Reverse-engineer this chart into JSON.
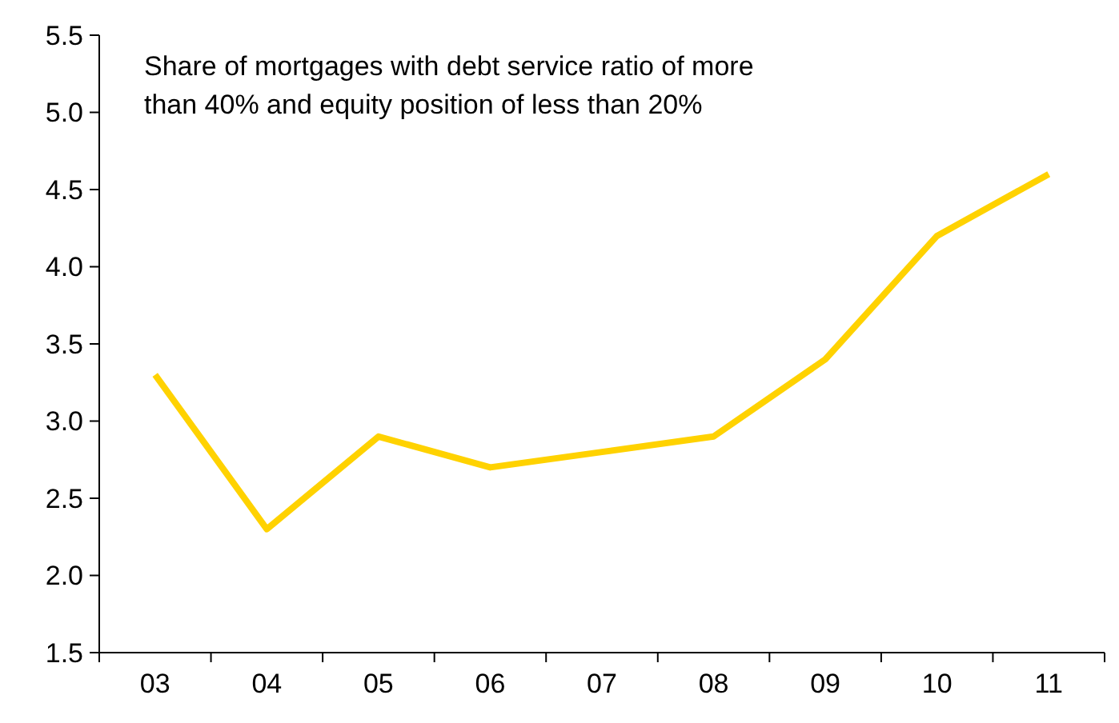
{
  "chart_data": {
    "type": "line",
    "title": "Share of mortgages with debt service ratio of more than 40% and equity position of less than 20%",
    "categories": [
      "03",
      "04",
      "05",
      "06",
      "07",
      "08",
      "09",
      "10",
      "11"
    ],
    "series": [
      {
        "color": "#ffd200",
        "values": [
          3.3,
          2.3,
          2.9,
          2.7,
          2.8,
          2.9,
          3.4,
          4.2,
          4.6
        ]
      }
    ],
    "ylim": [
      1.5,
      5.5
    ],
    "yticks": [
      {
        "value": 1.5,
        "label": "1.5"
      },
      {
        "value": 2,
        "label": "2.0"
      },
      {
        "value": 2.5,
        "label": "2.5"
      },
      {
        "value": 3,
        "label": "3.0"
      },
      {
        "value": 3.5,
        "label": "3.5"
      },
      {
        "value": 4,
        "label": "4.0"
      },
      {
        "value": 4.5,
        "label": "4.5"
      },
      {
        "value": 5,
        "label": "5.0"
      },
      {
        "value": 5.5,
        "label": "5.5"
      }
    ],
    "grid": false,
    "marker": "none",
    "line_style": "solid"
  }
}
